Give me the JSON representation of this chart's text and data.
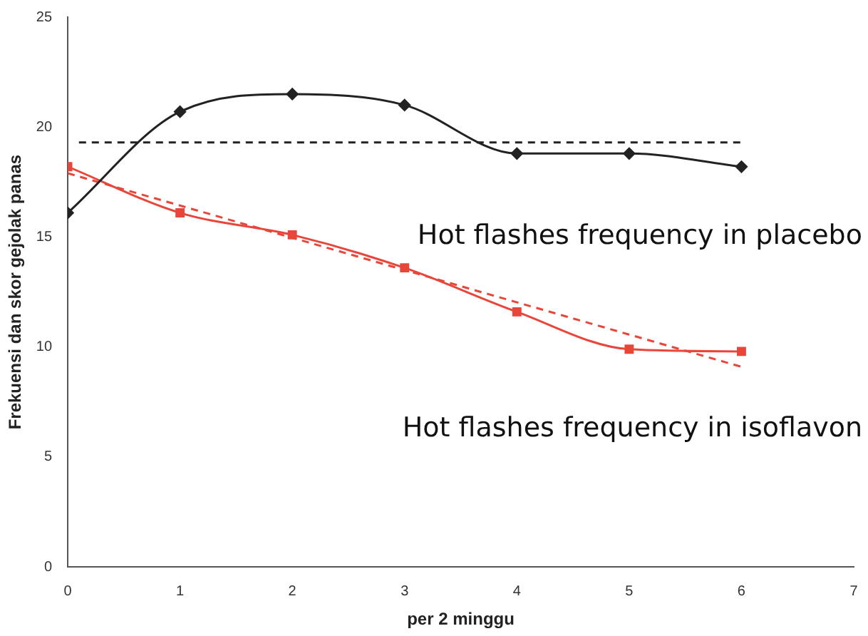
{
  "chart_data": {
    "type": "line",
    "xlabel": "per 2 minggu",
    "ylabel": "Frekuensi dan skor gejolak panas",
    "x": [
      0,
      1,
      2,
      3,
      4,
      5,
      6
    ],
    "xlim": [
      0,
      7
    ],
    "xticks": [
      0,
      1,
      2,
      3,
      4,
      5,
      6,
      7
    ],
    "ylim": [
      0,
      25
    ],
    "yticks": [
      0,
      5,
      10,
      15,
      20,
      25
    ],
    "grid": false,
    "legend": false,
    "series": [
      {
        "color": "#222222",
        "values": [
          16.1,
          20.7,
          21.5,
          21.0,
          18.8,
          18.8,
          18.2
        ],
        "marker": "diamond",
        "line_style": "solid"
      },
      {
        "color": "#e8463a",
        "values": [
          18.2,
          16.1,
          15.1,
          13.6,
          11.6,
          9.9,
          9.8
        ],
        "marker": "square",
        "line_style": "solid"
      },
      {
        "color": "#222222",
        "x": [
          0.1,
          6
        ],
        "values": [
          19.3,
          19.3
        ],
        "marker": "none",
        "line_style": "dashed"
      },
      {
        "color": "#e8463a",
        "x": [
          0,
          6
        ],
        "values": [
          17.9,
          9.1
        ],
        "marker": "none",
        "line_style": "dashed"
      }
    ],
    "annotations": [
      "Hot flashes frequency in placebo",
      "Hot flashes frequency in isoflavon"
    ]
  }
}
